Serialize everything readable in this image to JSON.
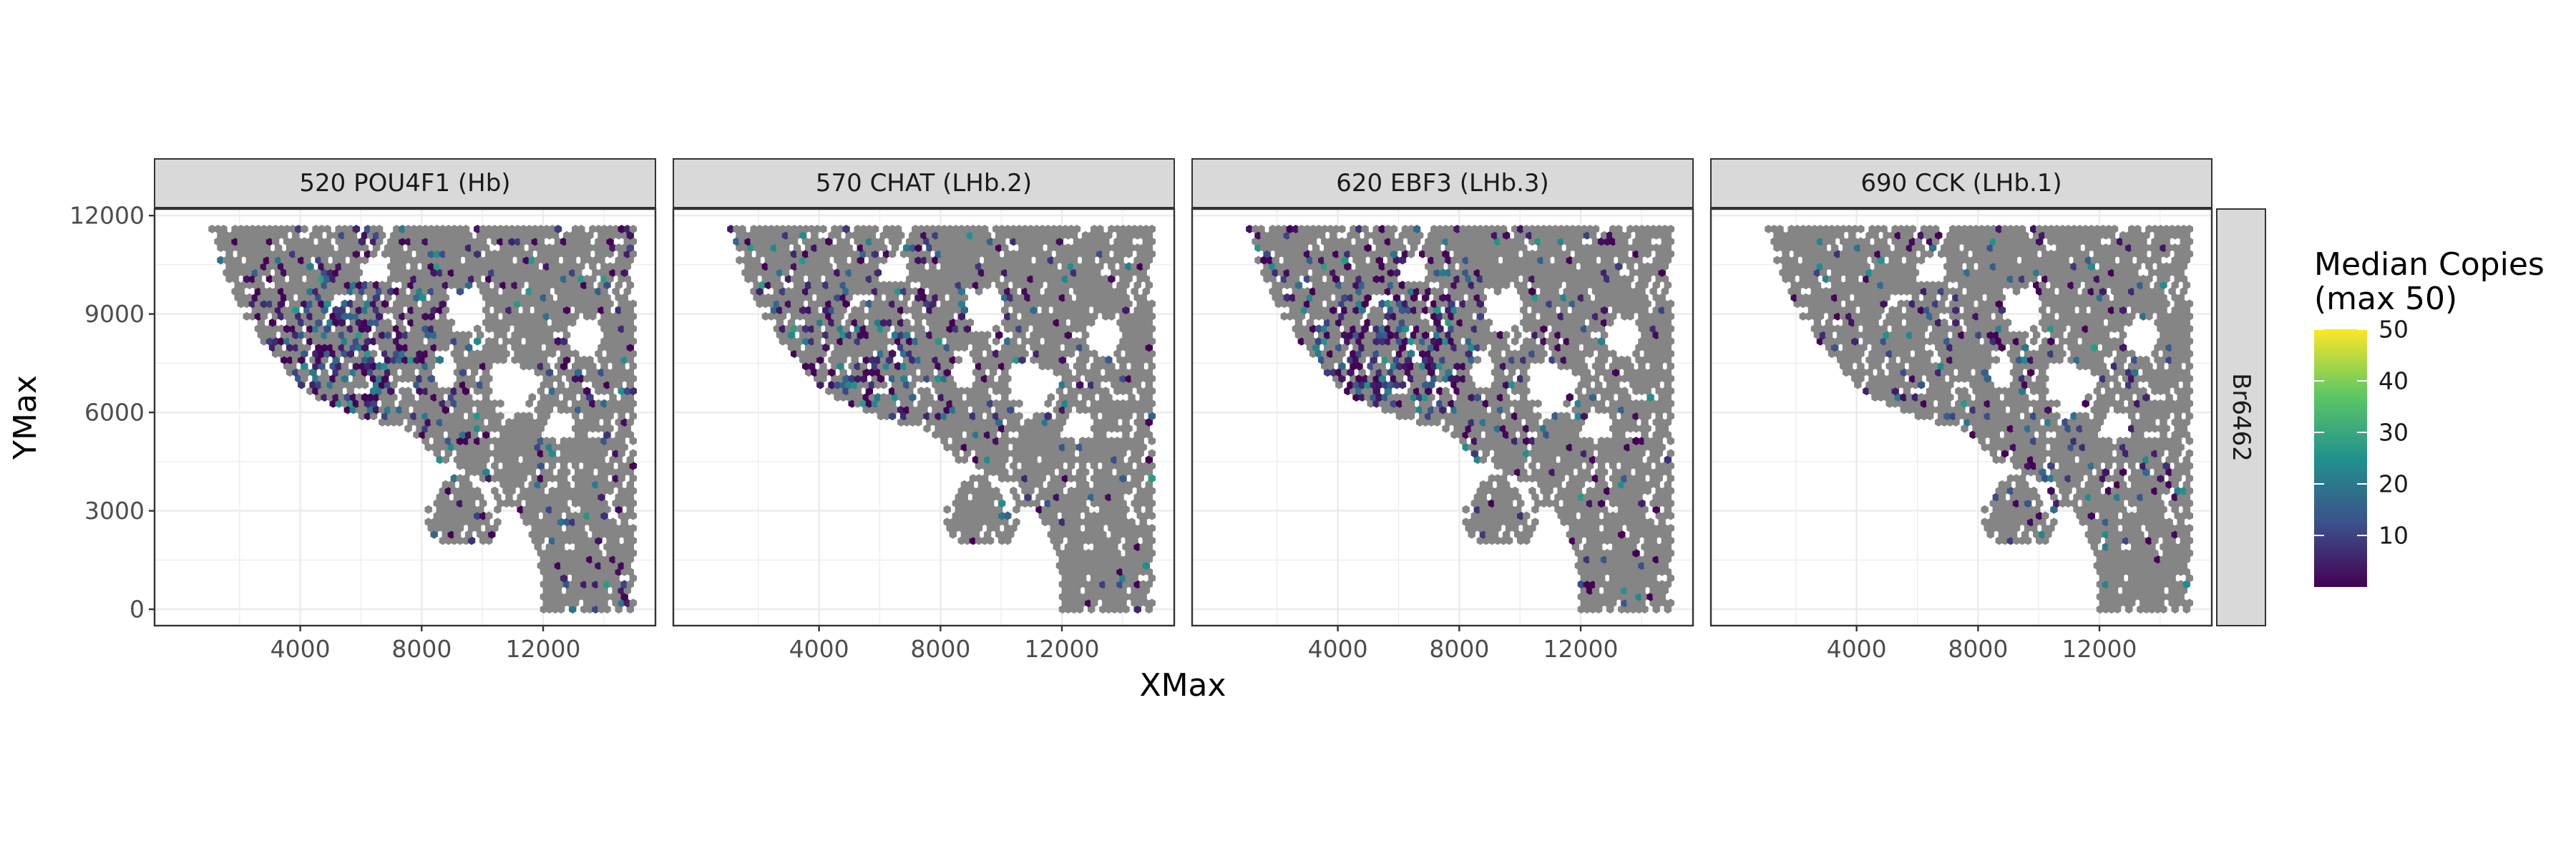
{
  "chart_data": {
    "type": "heatmap",
    "plot_kind": "faceted hexbin spatial map",
    "xlabel": "XMax",
    "ylabel": "YMax",
    "x_ticks": [
      4000,
      8000,
      12000
    ],
    "y_ticks": [
      0,
      3000,
      6000,
      9000,
      12000
    ],
    "xlim": [
      -800,
      15700
    ],
    "ylim": [
      -500,
      12200
    ],
    "row_strip": "Br6462",
    "facets": [
      {
        "label": "520 POU4F1 (Hb)",
        "intensity": 0.55,
        "hotspot": [
          5800,
          7800
        ],
        "spread": 1700
      },
      {
        "label": "570 CHAT (LHb.2)",
        "intensity": 0.3,
        "hotspot": [
          5200,
          7600
        ],
        "spread": 2600
      },
      {
        "label": "620 EBF3 (LHb.3)",
        "intensity": 0.45,
        "hotspot": [
          5600,
          7800
        ],
        "spread": 2200
      },
      {
        "label": "690 CCK (LHb.1)",
        "intensity": 0.12,
        "hotspot": [
          9000,
          6000
        ],
        "spread": 4000
      }
    ],
    "legend": {
      "title_line1": "Median Copies",
      "title_line2": "(max 50)",
      "ticks": [
        10,
        20,
        30,
        40,
        50
      ],
      "range": [
        0,
        50
      ],
      "colormap": [
        "#440154",
        "#3b528b",
        "#21918c",
        "#5ec962",
        "#fde725"
      ]
    },
    "colors": {
      "panel_border": "#333333",
      "grid": "#ebebeb",
      "strip_fill": "#d9d9d9",
      "zero_fill": "#858585"
    }
  }
}
